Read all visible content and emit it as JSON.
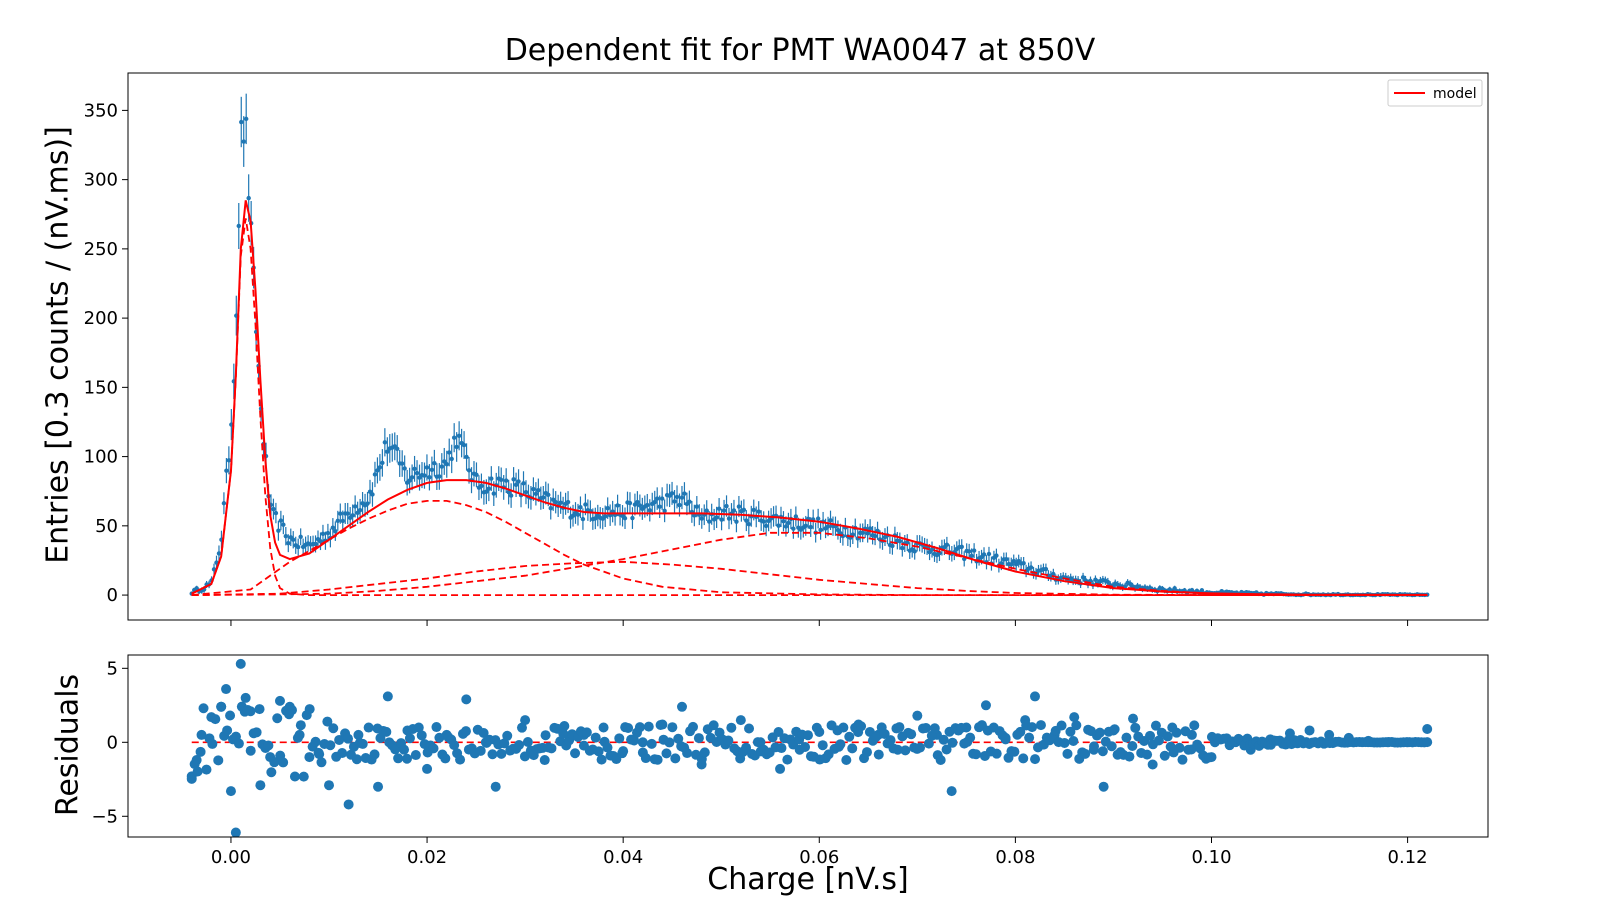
{
  "chart_data": [
    {
      "type": "scatter",
      "panel": "main",
      "title": "Dependent fit for PMT WA0047 at 850V",
      "xlabel": "",
      "ylabel": "Entries [0.3 counts / (nV.ms)]",
      "xlim": [
        -0.0105,
        0.1282
      ],
      "ylim": [
        -18,
        377
      ],
      "yticks": [
        0,
        50,
        100,
        150,
        200,
        250,
        300,
        350
      ],
      "grid": false,
      "legend": {
        "placement": "top-right",
        "entries": [
          "model"
        ]
      },
      "colors": {
        "data": "#1f77b4",
        "model": "#ff0000"
      },
      "data_series": {
        "name": "",
        "style": "points with error bars",
        "x_range": [
          -0.004,
          0.122
        ],
        "bins": 500,
        "approx_points": [
          [
            -0.004,
            2
          ],
          [
            -0.002,
            8
          ],
          [
            -0.001,
            40
          ],
          [
            0.0,
            120
          ],
          [
            0.0005,
            195
          ],
          [
            0.001,
            330
          ],
          [
            0.0015,
            340
          ],
          [
            0.002,
            265
          ],
          [
            0.003,
            140
          ],
          [
            0.004,
            60
          ],
          [
            0.006,
            40
          ],
          [
            0.008,
            35
          ],
          [
            0.01,
            45
          ],
          [
            0.012,
            60
          ],
          [
            0.014,
            70
          ],
          [
            0.016,
            110
          ],
          [
            0.018,
            85
          ],
          [
            0.02,
            90
          ],
          [
            0.022,
            95
          ],
          [
            0.023,
            115
          ],
          [
            0.025,
            80
          ],
          [
            0.028,
            80
          ],
          [
            0.03,
            75
          ],
          [
            0.033,
            65
          ],
          [
            0.036,
            60
          ],
          [
            0.04,
            60
          ],
          [
            0.043,
            65
          ],
          [
            0.046,
            70
          ],
          [
            0.048,
            55
          ],
          [
            0.05,
            60
          ],
          [
            0.055,
            55
          ],
          [
            0.06,
            50
          ],
          [
            0.065,
            45
          ],
          [
            0.07,
            35
          ],
          [
            0.075,
            30
          ],
          [
            0.08,
            22
          ],
          [
            0.085,
            12
          ],
          [
            0.09,
            8
          ],
          [
            0.095,
            4
          ],
          [
            0.1,
            2
          ],
          [
            0.105,
            1
          ],
          [
            0.11,
            0.5
          ],
          [
            0.115,
            0.3
          ],
          [
            0.122,
            0.2
          ]
        ]
      },
      "model": {
        "name": "model",
        "style": "solid red line",
        "points": [
          [
            -0.004,
            1
          ],
          [
            -0.002,
            8
          ],
          [
            -0.001,
            28
          ],
          [
            0.0,
            90
          ],
          [
            0.0005,
            160
          ],
          [
            0.001,
            250
          ],
          [
            0.0015,
            285
          ],
          [
            0.002,
            270
          ],
          [
            0.0025,
            220
          ],
          [
            0.003,
            155
          ],
          [
            0.0035,
            98
          ],
          [
            0.004,
            58
          ],
          [
            0.0045,
            38
          ],
          [
            0.005,
            29
          ],
          [
            0.006,
            26
          ],
          [
            0.008,
            30
          ],
          [
            0.01,
            40
          ],
          [
            0.012,
            50
          ],
          [
            0.014,
            60
          ],
          [
            0.016,
            69
          ],
          [
            0.018,
            76
          ],
          [
            0.02,
            81
          ],
          [
            0.022,
            83
          ],
          [
            0.024,
            83
          ],
          [
            0.026,
            81
          ],
          [
            0.028,
            77
          ],
          [
            0.03,
            72
          ],
          [
            0.032,
            67
          ],
          [
            0.034,
            63
          ],
          [
            0.036,
            60
          ],
          [
            0.038,
            59
          ],
          [
            0.04,
            59
          ],
          [
            0.044,
            59
          ],
          [
            0.048,
            59
          ],
          [
            0.052,
            58
          ],
          [
            0.056,
            56
          ],
          [
            0.06,
            53
          ],
          [
            0.064,
            48
          ],
          [
            0.068,
            42
          ],
          [
            0.072,
            34
          ],
          [
            0.076,
            25
          ],
          [
            0.08,
            17
          ],
          [
            0.085,
            10
          ],
          [
            0.09,
            5
          ],
          [
            0.095,
            2.5
          ],
          [
            0.1,
            1.2
          ],
          [
            0.105,
            0.6
          ],
          [
            0.11,
            0.3
          ],
          [
            0.115,
            0.2
          ],
          [
            0.122,
            0.1
          ]
        ]
      },
      "components": [
        {
          "name": "",
          "style": "dashed red",
          "points": [
            [
              -0.004,
              1
            ],
            [
              -0.002,
              8
            ],
            [
              -0.001,
              28
            ],
            [
              0.0,
              90
            ],
            [
              0.0005,
              158
            ],
            [
              0.001,
              245
            ],
            [
              0.0015,
              272
            ],
            [
              0.002,
              250
            ],
            [
              0.0025,
              195
            ],
            [
              0.003,
              128
            ],
            [
              0.0035,
              72
            ],
            [
              0.004,
              34
            ],
            [
              0.0045,
              14
            ],
            [
              0.005,
              5
            ],
            [
              0.006,
              1
            ],
            [
              0.008,
              0
            ],
            [
              0.122,
              0
            ]
          ]
        },
        {
          "name": "",
          "style": "dashed red",
          "points": [
            [
              -0.004,
              0
            ],
            [
              0.002,
              4
            ],
            [
              0.006,
              24
            ],
            [
              0.008,
              32
            ],
            [
              0.01,
              40
            ],
            [
              0.012,
              48
            ],
            [
              0.014,
              55
            ],
            [
              0.016,
              61
            ],
            [
              0.018,
              66
            ],
            [
              0.02,
              68
            ],
            [
              0.022,
              68
            ],
            [
              0.024,
              65
            ],
            [
              0.026,
              60
            ],
            [
              0.028,
              53
            ],
            [
              0.03,
              45
            ],
            [
              0.032,
              37
            ],
            [
              0.034,
              29
            ],
            [
              0.036,
              22
            ],
            [
              0.04,
              12
            ],
            [
              0.044,
              6
            ],
            [
              0.05,
              2
            ],
            [
              0.06,
              0.5
            ],
            [
              0.07,
              0
            ],
            [
              0.122,
              0
            ]
          ]
        },
        {
          "name": "",
          "style": "dashed red",
          "points": [
            [
              -0.004,
              0
            ],
            [
              0.005,
              1
            ],
            [
              0.01,
              4
            ],
            [
              0.015,
              8
            ],
            [
              0.02,
              12
            ],
            [
              0.025,
              17
            ],
            [
              0.03,
              21
            ],
            [
              0.035,
              23
            ],
            [
              0.04,
              24
            ],
            [
              0.045,
              22
            ],
            [
              0.05,
              19
            ],
            [
              0.055,
              15
            ],
            [
              0.06,
              11
            ],
            [
              0.065,
              8
            ],
            [
              0.07,
              5
            ],
            [
              0.075,
              3
            ],
            [
              0.08,
              1.5
            ],
            [
              0.09,
              0.3
            ],
            [
              0.1,
              0
            ],
            [
              0.122,
              0
            ]
          ]
        },
        {
          "name": "",
          "style": "dashed red",
          "points": [
            [
              -0.004,
              0
            ],
            [
              0.005,
              0.5
            ],
            [
              0.01,
              1
            ],
            [
              0.015,
              3
            ],
            [
              0.02,
              6
            ],
            [
              0.025,
              10
            ],
            [
              0.03,
              14
            ],
            [
              0.035,
              20
            ],
            [
              0.04,
              26
            ],
            [
              0.045,
              33
            ],
            [
              0.05,
              40
            ],
            [
              0.055,
              45
            ],
            [
              0.06,
              45
            ],
            [
              0.065,
              41
            ],
            [
              0.07,
              35
            ],
            [
              0.075,
              27
            ],
            [
              0.08,
              19
            ],
            [
              0.085,
              12
            ],
            [
              0.09,
              6
            ],
            [
              0.095,
              3
            ],
            [
              0.1,
              1
            ],
            [
              0.105,
              0.3
            ],
            [
              0.112,
              0
            ],
            [
              0.122,
              0
            ]
          ]
        }
      ]
    },
    {
      "type": "scatter",
      "panel": "residuals",
      "xlabel": "Charge [nV.s]",
      "ylabel": "Residuals",
      "xlim": [
        -0.0105,
        0.1282
      ],
      "ylim": [
        -6.4,
        5.9
      ],
      "xticks": [
        0.0,
        0.02,
        0.04,
        0.06,
        0.08,
        0.1,
        0.12
      ],
      "xtick_labels": [
        "0.00",
        "0.02",
        "0.04",
        "0.06",
        "0.08",
        "0.10",
        "0.12"
      ],
      "yticks": [
        -5,
        0,
        5
      ],
      "ytick_labels": [
        "−5",
        "0",
        "5"
      ],
      "grid": false,
      "reference_line": {
        "y": 0,
        "style": "dashed red"
      },
      "approx_points": [
        [
          -0.004,
          -2.3
        ],
        [
          -0.0035,
          -1.2
        ],
        [
          -0.003,
          0.5
        ],
        [
          -0.002,
          1.7
        ],
        [
          -0.001,
          2.4
        ],
        [
          -0.0005,
          3.6
        ],
        [
          0.0,
          -3.3
        ],
        [
          0.0005,
          -6.1
        ],
        [
          0.001,
          5.3
        ],
        [
          0.0015,
          3.0
        ],
        [
          0.002,
          2.1
        ],
        [
          0.003,
          -2.9
        ],
        [
          0.004,
          -1.0
        ],
        [
          0.005,
          2.8
        ],
        [
          0.006,
          2.4
        ],
        [
          0.007,
          0.5
        ],
        [
          0.008,
          -1.0
        ],
        [
          0.009,
          -0.8
        ],
        [
          0.01,
          -2.9
        ],
        [
          0.012,
          -4.2
        ],
        [
          0.013,
          0.5
        ],
        [
          0.015,
          -3.0
        ],
        [
          0.016,
          3.1
        ],
        [
          0.018,
          0.8
        ],
        [
          0.02,
          -1.8
        ],
        [
          0.022,
          0.5
        ],
        [
          0.024,
          2.9
        ],
        [
          0.026,
          0.0
        ],
        [
          0.027,
          -3.0
        ],
        [
          0.03,
          1.5
        ],
        [
          0.032,
          -1.2
        ],
        [
          0.034,
          1.1
        ],
        [
          0.036,
          0.5
        ],
        [
          0.038,
          1.0
        ],
        [
          0.04,
          -0.6
        ],
        [
          0.042,
          0.0
        ],
        [
          0.044,
          1.2
        ],
        [
          0.046,
          2.4
        ],
        [
          0.048,
          -1.5
        ],
        [
          0.05,
          0.2
        ],
        [
          0.052,
          1.5
        ],
        [
          0.054,
          0.0
        ],
        [
          0.056,
          -1.8
        ],
        [
          0.058,
          -0.5
        ],
        [
          0.06,
          0.7
        ],
        [
          0.062,
          -0.3
        ],
        [
          0.064,
          1.2
        ],
        [
          0.066,
          0.5
        ],
        [
          0.068,
          -0.5
        ],
        [
          0.07,
          1.8
        ],
        [
          0.072,
          0.5
        ],
        [
          0.0735,
          -3.3
        ],
        [
          0.075,
          1.0
        ],
        [
          0.077,
          2.5
        ],
        [
          0.079,
          0.2
        ],
        [
          0.081,
          1.5
        ],
        [
          0.082,
          3.1
        ],
        [
          0.084,
          0.5
        ],
        [
          0.086,
          1.7
        ],
        [
          0.088,
          -0.5
        ],
        [
          0.089,
          -3.0
        ],
        [
          0.09,
          0.8
        ],
        [
          0.092,
          1.6
        ],
        [
          0.094,
          -1.5
        ],
        [
          0.096,
          1.0
        ],
        [
          0.098,
          0.5
        ],
        [
          0.1,
          -1.0
        ],
        [
          0.102,
          0.0
        ],
        [
          0.104,
          -0.5
        ],
        [
          0.106,
          0.2
        ],
        [
          0.108,
          0.6
        ],
        [
          0.11,
          0.8
        ],
        [
          0.112,
          0.5
        ],
        [
          0.114,
          0.3
        ],
        [
          0.116,
          0.1
        ],
        [
          0.118,
          0.0
        ],
        [
          0.12,
          0.0
        ],
        [
          0.122,
          0.9
        ]
      ]
    }
  ]
}
